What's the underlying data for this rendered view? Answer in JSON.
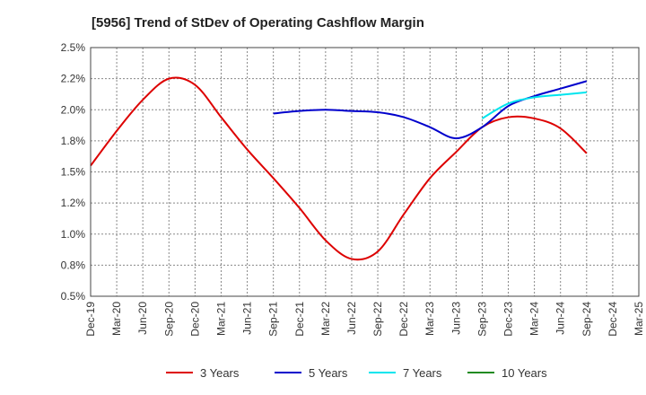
{
  "chart_data": {
    "type": "line",
    "title": "[5956]  Trend of StDev of Operating Cashflow Margin",
    "xlabel": "",
    "ylabel": "",
    "categories": [
      "Dec-19",
      "Mar-20",
      "Jun-20",
      "Sep-20",
      "Dec-20",
      "Mar-21",
      "Jun-21",
      "Sep-21",
      "Dec-21",
      "Mar-22",
      "Jun-22",
      "Sep-22",
      "Dec-22",
      "Mar-23",
      "Jun-23",
      "Sep-23",
      "Dec-23",
      "Mar-24",
      "Jun-24",
      "Sep-24",
      "Dec-24",
      "Mar-25"
    ],
    "y_ticks": [
      "0.5%",
      "0.8%",
      "1.0%",
      "1.2%",
      "1.5%",
      "1.8%",
      "2.0%",
      "2.2%",
      "2.5%"
    ],
    "ylim": [
      0.5,
      2.5
    ],
    "grid": true,
    "legend_position": "bottom",
    "series": [
      {
        "name": "3 Years",
        "color": "#dd0000",
        "values": [
          1.55,
          1.83,
          2.08,
          2.25,
          2.2,
          1.94,
          1.68,
          1.45,
          1.21,
          0.95,
          0.8,
          0.86,
          1.16,
          1.45,
          1.66,
          1.86,
          1.94,
          1.93,
          1.85,
          1.65,
          null,
          null
        ]
      },
      {
        "name": "5 Years",
        "color": "#0000cc",
        "values": [
          null,
          null,
          null,
          null,
          null,
          null,
          null,
          1.97,
          1.99,
          2.0,
          1.99,
          1.98,
          1.94,
          1.86,
          1.77,
          1.86,
          2.03,
          2.11,
          2.17,
          2.23,
          null,
          null
        ]
      },
      {
        "name": "7 Years",
        "color": "#00e5ee",
        "values": [
          null,
          null,
          null,
          null,
          null,
          null,
          null,
          null,
          null,
          null,
          null,
          null,
          null,
          null,
          null,
          1.93,
          2.05,
          2.1,
          2.12,
          2.14,
          null,
          null
        ]
      },
      {
        "name": "10 Years",
        "color": "#228b22",
        "values": [
          null,
          null,
          null,
          null,
          null,
          null,
          null,
          null,
          null,
          null,
          null,
          null,
          null,
          null,
          null,
          null,
          null,
          null,
          null,
          null,
          null,
          null
        ]
      }
    ]
  }
}
